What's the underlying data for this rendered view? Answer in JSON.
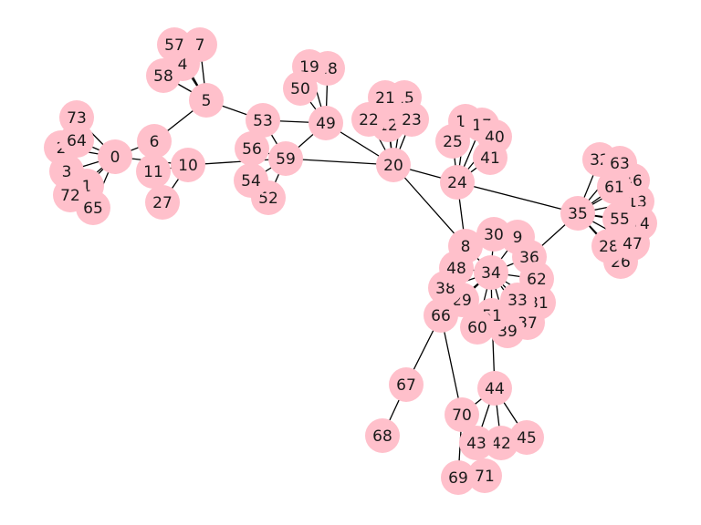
{
  "colors": {
    "node_fill": "#ffc0cb",
    "edge_stroke": "#000000",
    "label_text": "#1a1a1a",
    "background": "#ffffff"
  },
  "graph": {
    "nodes": [
      "0",
      "1",
      "2",
      "3",
      "4",
      "5",
      "6",
      "7",
      "8",
      "9",
      "10",
      "11",
      "12",
      "13",
      "14",
      "15",
      "16",
      "17",
      "18",
      "19",
      "20",
      "21",
      "22",
      "23",
      "24",
      "25",
      "26",
      "27",
      "28",
      "29",
      "30",
      "31",
      "32",
      "33",
      "34",
      "35",
      "36",
      "37",
      "38",
      "39",
      "40",
      "41",
      "42",
      "43",
      "44",
      "45",
      "46",
      "47",
      "48",
      "49",
      "50",
      "51",
      "52",
      "53",
      "54",
      "55",
      "56",
      "57",
      "58",
      "59",
      "60",
      "61",
      "62",
      "63",
      "64",
      "65",
      "66",
      "67",
      "68",
      "69",
      "70",
      "71",
      "72",
      "73"
    ],
    "edges": [
      [
        "0",
        "73"
      ],
      [
        "0",
        "64"
      ],
      [
        "0",
        "2"
      ],
      [
        "0",
        "3"
      ],
      [
        "0",
        "72"
      ],
      [
        "0",
        "1"
      ],
      [
        "0",
        "65"
      ],
      [
        "0",
        "6"
      ],
      [
        "0",
        "10"
      ],
      [
        "6",
        "5"
      ],
      [
        "6",
        "11"
      ],
      [
        "11",
        "10"
      ],
      [
        "10",
        "27"
      ],
      [
        "10",
        "59"
      ],
      [
        "5",
        "7"
      ],
      [
        "5",
        "57"
      ],
      [
        "5",
        "4"
      ],
      [
        "5",
        "58"
      ],
      [
        "5",
        "53"
      ],
      [
        "53",
        "59"
      ],
      [
        "53",
        "49"
      ],
      [
        "59",
        "56"
      ],
      [
        "59",
        "54"
      ],
      [
        "59",
        "52"
      ],
      [
        "59",
        "49"
      ],
      [
        "59",
        "20"
      ],
      [
        "49",
        "19"
      ],
      [
        "49",
        "18"
      ],
      [
        "49",
        "50"
      ],
      [
        "49",
        "20"
      ],
      [
        "20",
        "21"
      ],
      [
        "20",
        "15"
      ],
      [
        "20",
        "22"
      ],
      [
        "20",
        "12"
      ],
      [
        "20",
        "23"
      ],
      [
        "20",
        "24"
      ],
      [
        "20",
        "8"
      ],
      [
        "24",
        "16"
      ],
      [
        "24",
        "17"
      ],
      [
        "24",
        "25"
      ],
      [
        "24",
        "40"
      ],
      [
        "24",
        "41"
      ],
      [
        "24",
        "35"
      ],
      [
        "24",
        "8"
      ],
      [
        "35",
        "32"
      ],
      [
        "35",
        "63"
      ],
      [
        "35",
        "61"
      ],
      [
        "35",
        "46"
      ],
      [
        "35",
        "13"
      ],
      [
        "35",
        "55"
      ],
      [
        "35",
        "14"
      ],
      [
        "35",
        "28"
      ],
      [
        "35",
        "47"
      ],
      [
        "35",
        "26"
      ],
      [
        "35",
        "36"
      ],
      [
        "34",
        "8"
      ],
      [
        "34",
        "30"
      ],
      [
        "34",
        "9"
      ],
      [
        "34",
        "36"
      ],
      [
        "34",
        "48"
      ],
      [
        "34",
        "62"
      ],
      [
        "34",
        "38"
      ],
      [
        "34",
        "29"
      ],
      [
        "34",
        "33"
      ],
      [
        "34",
        "31"
      ],
      [
        "34",
        "51"
      ],
      [
        "34",
        "37"
      ],
      [
        "34",
        "60"
      ],
      [
        "34",
        "39"
      ],
      [
        "34",
        "66"
      ],
      [
        "51",
        "44"
      ],
      [
        "66",
        "67"
      ],
      [
        "66",
        "70"
      ],
      [
        "67",
        "68"
      ],
      [
        "70",
        "69"
      ],
      [
        "70",
        "71"
      ],
      [
        "70",
        "44"
      ],
      [
        "44",
        "43"
      ],
      [
        "44",
        "42"
      ],
      [
        "44",
        "45"
      ]
    ]
  }
}
